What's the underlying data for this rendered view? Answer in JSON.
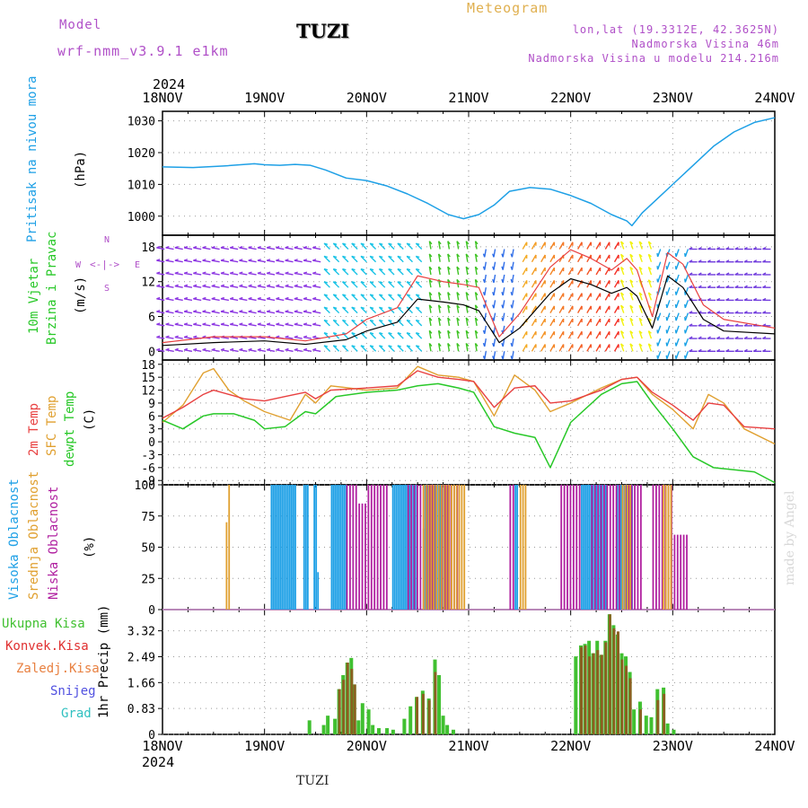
{
  "header": {
    "model_label": "Model",
    "model_name": "wrf-nmm_v3.9.1 e1km",
    "station": "TUZI",
    "app_title": "Meteogram",
    "lonlat": "lon,lat (19.3312E, 42.3625N)",
    "elevation": "Nadmorska Visina 46m",
    "model_elevation": "Nadmorska Visina u modelu 214.216m",
    "footer_station": "TUZI",
    "credit": "made by Angel"
  },
  "colors": {
    "pressure": "#1ea0e6",
    "model_text": "#b050c8",
    "title_orange": "#e0b050",
    "t2m": "#e84040",
    "sfc": "#e0a030",
    "dewpt": "#28c828",
    "high_cloud": "#1ea0e6",
    "mid_cloud": "#e0a030",
    "low_cloud": "#b020a0",
    "total_precip": "#40c030",
    "conv_precip": "#e03030",
    "grid": "#999999"
  },
  "chart_data": [
    {
      "panel": "pressure",
      "type": "line",
      "ylabel_left": "Pritisak na nivou mora",
      "ylabel_unit": "(hPa)",
      "ylim": [
        994,
        1033
      ],
      "yticks": [
        1000,
        1010,
        1020,
        1030
      ],
      "grid": true,
      "x_dates": [
        "18NOV",
        "19NOV",
        "20NOV",
        "21NOV",
        "22NOV",
        "23NOV",
        "24NOV"
      ],
      "year": "2024",
      "series": [
        {
          "x": [
            0,
            0.3,
            0.6,
            0.9,
            1.0,
            1.15,
            1.3,
            1.45,
            1.6,
            1.8,
            2.0,
            2.2,
            2.4,
            2.6,
            2.8,
            2.95,
            3.1,
            3.25,
            3.4,
            3.6,
            3.8,
            4.0,
            4.2,
            4.4,
            4.55,
            4.6,
            4.7,
            4.85,
            5.0,
            5.2,
            5.4,
            5.6,
            5.8,
            6.0
          ],
          "values": [
            1015.5,
            1015.3,
            1015.8,
            1016.5,
            1016.2,
            1016.0,
            1016.3,
            1016.0,
            1014.5,
            1012.0,
            1011.2,
            1009.5,
            1007.0,
            1004.0,
            1000.5,
            999.2,
            1000.5,
            1003.5,
            1007.8,
            1009.0,
            1008.5,
            1006.5,
            1004.0,
            1000.5,
            998.5,
            997.0,
            1001.0,
            1005.5,
            1010.0,
            1016.0,
            1022.0,
            1026.5,
            1029.5,
            1031.0
          ]
        }
      ]
    },
    {
      "panel": "wind",
      "type": "line",
      "ylabel_left": [
        "10m Vjetar",
        "Brzina i Pravac"
      ],
      "ylabel_unit": "(m/s)",
      "compass": [
        "N",
        "S",
        "W",
        "E"
      ],
      "ylim": [
        -1.5,
        20
      ],
      "yticks": [
        0,
        6,
        12,
        18
      ],
      "grid": true,
      "series": [
        {
          "name": "speed",
          "x": [
            0,
            0.5,
            1.0,
            1.4,
            1.8,
            2.0,
            2.3,
            2.5,
            2.75,
            2.95,
            3.1,
            3.3,
            3.5,
            3.8,
            4.0,
            4.2,
            4.4,
            4.55,
            4.65,
            4.8,
            4.95,
            5.1,
            5.3,
            5.5,
            6.0
          ],
          "values": [
            1.0,
            1.5,
            1.8,
            1.2,
            2.0,
            3.5,
            5.0,
            9.0,
            8.5,
            8.0,
            7.0,
            1.5,
            4.0,
            10.0,
            12.5,
            11.5,
            10.0,
            11.0,
            9.5,
            4.0,
            13.0,
            11.0,
            5.5,
            3.5,
            3.0
          ]
        },
        {
          "name": "gust",
          "x": [
            0,
            0.5,
            1.0,
            1.4,
            1.8,
            2.0,
            2.3,
            2.5,
            2.75,
            2.95,
            3.1,
            3.3,
            3.5,
            3.8,
            4.0,
            4.2,
            4.4,
            4.55,
            4.65,
            4.8,
            4.95,
            5.1,
            5.3,
            5.5,
            6.0
          ],
          "values": [
            1.5,
            2.5,
            2.5,
            1.8,
            3.0,
            5.5,
            7.5,
            13.0,
            12.0,
            11.5,
            11.0,
            2.5,
            6.5,
            14.5,
            17.5,
            16.0,
            14.0,
            16.0,
            14.0,
            6.0,
            17.0,
            15.0,
            8.0,
            5.5,
            4.0
          ]
        }
      ]
    },
    {
      "panel": "temperature",
      "type": "line",
      "ylabel_left": [
        "2m Temp",
        "SFC Temp",
        "dewpt Temp"
      ],
      "ylabel_unit": "(C)",
      "ylim": [
        -10,
        19
      ],
      "yticks": [
        -9,
        -6,
        -3,
        0,
        3,
        6,
        9,
        12,
        15,
        18
      ],
      "grid": true,
      "series": [
        {
          "name": "2m Temp",
          "x": [
            0,
            0.2,
            0.4,
            0.5,
            0.65,
            0.8,
            1.0,
            1.2,
            1.4,
            1.5,
            1.65,
            2.0,
            2.3,
            2.5,
            2.7,
            2.9,
            3.05,
            3.25,
            3.45,
            3.65,
            3.8,
            4.0,
            4.3,
            4.5,
            4.65,
            4.8,
            5.0,
            5.2,
            5.35,
            5.5,
            5.7,
            6.0
          ],
          "values": [
            5.5,
            8.0,
            11.0,
            12.0,
            11.0,
            10.0,
            9.5,
            10.5,
            11.5,
            10.0,
            12.0,
            12.5,
            13.0,
            16.5,
            15.0,
            14.5,
            14.0,
            8.0,
            12.5,
            13.0,
            9.0,
            9.5,
            12.0,
            14.5,
            15.0,
            11.5,
            8.5,
            5.0,
            9.0,
            8.5,
            3.5,
            3.0
          ]
        },
        {
          "name": "SFC Temp",
          "x": [
            0,
            0.2,
            0.4,
            0.5,
            0.65,
            0.8,
            1.0,
            1.25,
            1.4,
            1.5,
            1.65,
            2.0,
            2.3,
            2.5,
            2.7,
            2.9,
            3.05,
            3.25,
            3.45,
            3.65,
            3.8,
            4.0,
            4.3,
            4.5,
            4.65,
            4.8,
            5.0,
            5.2,
            5.35,
            5.5,
            5.7,
            6.0
          ],
          "values": [
            4.5,
            8.5,
            16.0,
            17.0,
            12.0,
            9.5,
            7.0,
            5.0,
            11.0,
            9.0,
            13.0,
            12.0,
            12.5,
            17.5,
            15.5,
            15.0,
            14.0,
            6.0,
            15.5,
            12.0,
            7.0,
            9.0,
            12.5,
            14.5,
            15.0,
            11.0,
            7.5,
            3.0,
            11.0,
            9.0,
            3.0,
            -0.5
          ]
        },
        {
          "name": "dewpt Temp",
          "x": [
            0,
            0.2,
            0.4,
            0.5,
            0.7,
            0.9,
            1.0,
            1.2,
            1.4,
            1.5,
            1.7,
            2.0,
            2.3,
            2.5,
            2.7,
            2.9,
            3.05,
            3.25,
            3.45,
            3.65,
            3.8,
            4.0,
            4.3,
            4.5,
            4.65,
            4.8,
            5.0,
            5.2,
            5.4,
            5.6,
            5.8,
            6.0
          ],
          "values": [
            5.0,
            3.0,
            6.0,
            6.5,
            6.5,
            5.0,
            3.0,
            3.5,
            7.0,
            6.5,
            10.5,
            11.5,
            12.0,
            13.0,
            13.5,
            12.5,
            11.5,
            3.5,
            2.0,
            1.0,
            -6.0,
            4.5,
            11.0,
            13.5,
            14.0,
            9.0,
            3.0,
            -3.5,
            -6.0,
            -6.5,
            -7.0,
            -9.5
          ]
        }
      ]
    },
    {
      "panel": "cloud",
      "type": "bar",
      "ylabel_left": [
        "Visoka Oblacnost",
        "Srednja Oblacnost",
        "Niska Oblacnost"
      ],
      "ylabel_unit": "(%)",
      "ylim": [
        0,
        100
      ],
      "yticks": [
        0,
        25,
        50,
        75,
        100
      ],
      "grid": true
    },
    {
      "panel": "precip",
      "type": "bar",
      "ylabel_left": [
        "Ukupna Kisa",
        "Konvek.Kisa",
        "Zaledj.Kisa",
        "Snijeg",
        "Grad"
      ],
      "ylabel_unit": "1hr Precip (mm)",
      "ylim": [
        0,
        4.0
      ],
      "yticks": [
        0,
        0.83,
        1.66,
        2.49,
        3.32
      ],
      "grid": true,
      "series": [
        {
          "name": "Ukupna Kisa",
          "x": [
            1.44,
            1.58,
            1.62,
            1.69,
            1.73,
            1.77,
            1.81,
            1.85,
            1.88,
            1.92,
            1.96,
            2.02,
            2.06,
            2.12,
            2.2,
            2.26,
            2.37,
            2.43,
            2.49,
            2.55,
            2.61,
            2.67,
            2.71,
            2.75,
            2.79,
            2.85,
            4.05,
            4.1,
            4.14,
            4.18,
            4.22,
            4.26,
            4.3,
            4.34,
            4.38,
            4.42,
            4.46,
            4.5,
            4.54,
            4.58,
            4.62,
            4.68,
            4.74,
            4.79,
            4.85,
            4.91,
            4.95,
            5.01
          ],
          "values": [
            0.45,
            0.3,
            0.6,
            0.5,
            1.45,
            1.9,
            2.3,
            2.45,
            1.6,
            0.45,
            1.0,
            0.8,
            0.3,
            0.2,
            0.2,
            0.15,
            0.5,
            0.9,
            1.2,
            1.4,
            1.15,
            2.4,
            1.9,
            0.6,
            0.3,
            0.15,
            2.5,
            2.85,
            2.9,
            3.0,
            2.6,
            3.0,
            2.55,
            3.0,
            3.85,
            3.5,
            3.2,
            2.6,
            2.5,
            2.0,
            0.8,
            1.05,
            0.6,
            0.55,
            1.45,
            1.5,
            0.35,
            0.15
          ]
        },
        {
          "name": "Konvek.Kisa",
          "x": [
            1.73,
            1.77,
            1.81,
            1.85,
            1.88,
            2.49,
            2.55,
            2.61,
            2.67,
            4.1,
            4.14,
            4.18,
            4.22,
            4.26,
            4.3,
            4.34,
            4.38,
            4.42,
            4.46,
            4.5,
            4.54,
            4.58,
            4.68,
            4.85,
            4.91
          ],
          "values": [
            1.45,
            1.75,
            2.3,
            2.1,
            1.6,
            1.2,
            1.3,
            1.1,
            2.0,
            2.8,
            2.85,
            2.5,
            2.6,
            2.7,
            2.55,
            2.95,
            3.85,
            3.4,
            3.3,
            2.4,
            2.2,
            1.8,
            0.8,
            1.1,
            1.3
          ]
        }
      ]
    }
  ]
}
